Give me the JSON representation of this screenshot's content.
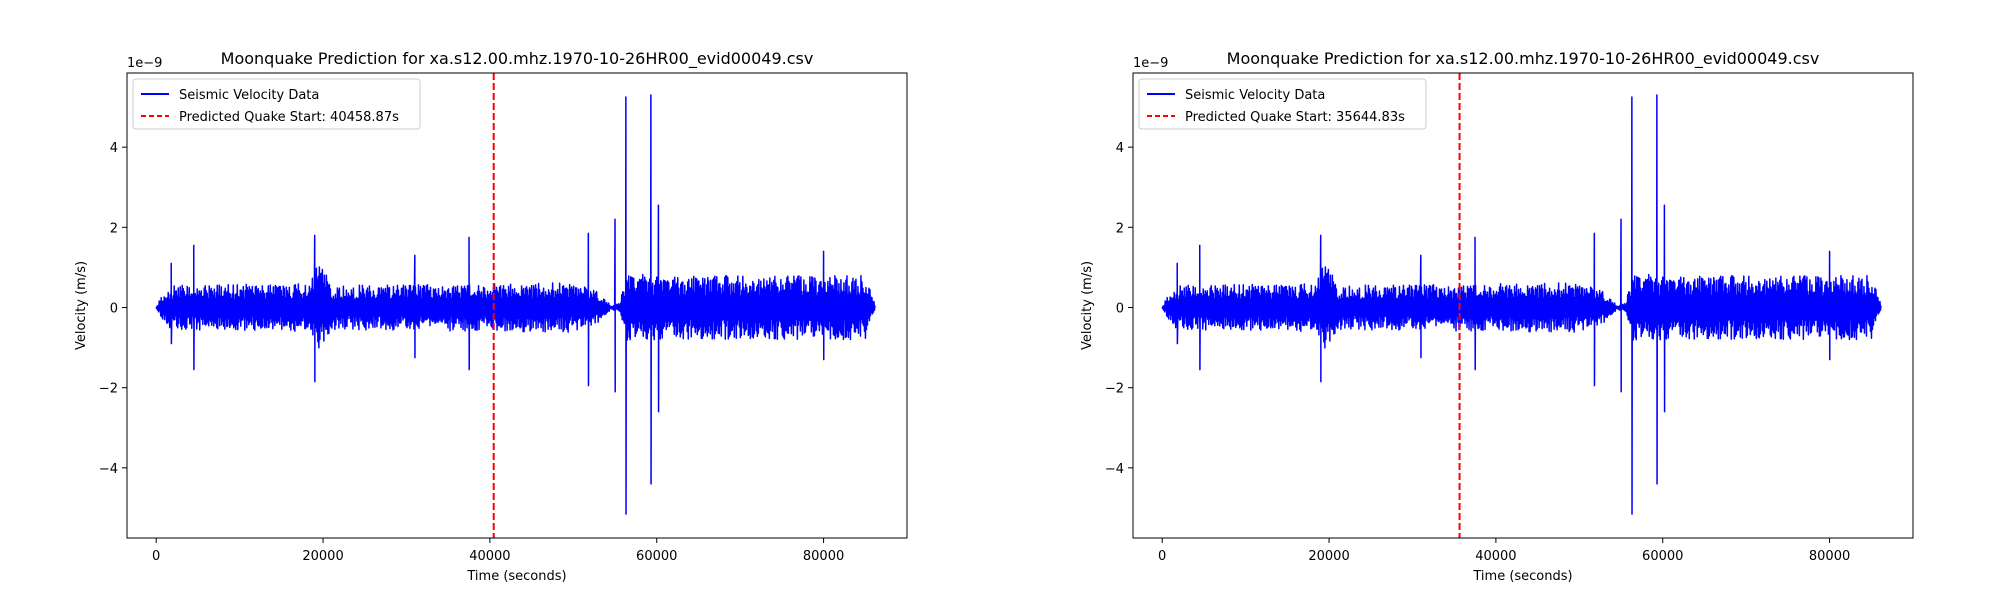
{
  "chart_data": [
    {
      "type": "line",
      "title": "Moonquake Prediction for xa.s12.00.mhz.1970-10-26HR00_evid00049.csv",
      "xlabel": "Time (seconds)",
      "ylabel": "Velocity (m/s)",
      "y_scale_label": "1e−9",
      "xlim": [
        -3500,
        90000
      ],
      "ylim": [
        -5.75e-09,
        5.85e-09
      ],
      "x_ticks": [
        0,
        20000,
        40000,
        60000,
        80000
      ],
      "x_tick_labels": [
        "0",
        "20000",
        "40000",
        "60000",
        "80000"
      ],
      "y_ticks": [
        -4e-09,
        -2e-09,
        0,
        2e-09,
        4e-09
      ],
      "y_tick_labels": [
        "−4",
        "−2",
        "0",
        "2",
        "4"
      ],
      "grid": false,
      "legend_position": "upper-left",
      "series": [
        {
          "name": "Seismic Velocity Data",
          "color": "#0000ff",
          "style": "solid",
          "background_amplitude": [
            [
              0,
              5e-11
            ],
            [
              1500,
              5.5e-10
            ],
            [
              18500,
              6e-10
            ],
            [
              19500,
              1.2e-09
            ],
            [
              21000,
              5.5e-10
            ],
            [
              50000,
              6.2e-10
            ],
            [
              53000,
              4e-10
            ],
            [
              54500,
              5e-11
            ],
            [
              55500,
              1e-10
            ],
            [
              56500,
              8.5e-10
            ],
            [
              60000,
              8e-10
            ],
            [
              85000,
              8e-10
            ],
            [
              86200,
              5e-11
            ]
          ],
          "spikes": [
            {
              "x": 1800,
              "pos": 1.1e-09,
              "neg": -9e-10
            },
            {
              "x": 4500,
              "pos": 1.55e-09,
              "neg": -1.55e-09
            },
            {
              "x": 19000,
              "pos": 1.8e-09,
              "neg": -1.85e-09
            },
            {
              "x": 31000,
              "pos": 1.3e-09,
              "neg": -1.25e-09
            },
            {
              "x": 37500,
              "pos": 1.75e-09,
              "neg": -1.55e-09
            },
            {
              "x": 51800,
              "pos": 1.85e-09,
              "neg": -1.95e-09
            },
            {
              "x": 55000,
              "pos": 2.2e-09,
              "neg": -2.1e-09
            },
            {
              "x": 56300,
              "pos": 5.25e-09,
              "neg": -5.15e-09
            },
            {
              "x": 59300,
              "pos": 5.3e-09,
              "neg": -4.4e-09
            },
            {
              "x": 60200,
              "pos": 2.55e-09,
              "neg": -2.6e-09
            },
            {
              "x": 80000,
              "pos": 1.4e-09,
              "neg": -1.3e-09
            }
          ]
        },
        {
          "name": "Predicted Quake Start: 40458.87s",
          "color": "#ff0000",
          "style": "dashed",
          "x": 40458.87
        }
      ]
    },
    {
      "type": "line",
      "title": "Moonquake Prediction for xa.s12.00.mhz.1970-10-26HR00_evid00049.csv",
      "xlabel": "Time (seconds)",
      "ylabel": "Velocity (m/s)",
      "y_scale_label": "1e−9",
      "xlim": [
        -3500,
        90000
      ],
      "ylim": [
        -5.75e-09,
        5.85e-09
      ],
      "x_ticks": [
        0,
        20000,
        40000,
        60000,
        80000
      ],
      "x_tick_labels": [
        "0",
        "20000",
        "40000",
        "60000",
        "80000"
      ],
      "y_ticks": [
        -4e-09,
        -2e-09,
        0,
        2e-09,
        4e-09
      ],
      "y_tick_labels": [
        "−4",
        "−2",
        "0",
        "2",
        "4"
      ],
      "grid": false,
      "legend_position": "upper-left",
      "series": [
        {
          "name": "Seismic Velocity Data",
          "color": "#0000ff",
          "style": "solid",
          "background_amplitude": [
            [
              0,
              5e-11
            ],
            [
              1500,
              5.5e-10
            ],
            [
              18500,
              6e-10
            ],
            [
              19500,
              1.2e-09
            ],
            [
              21000,
              5.5e-10
            ],
            [
              50000,
              6.2e-10
            ],
            [
              53000,
              4e-10
            ],
            [
              54500,
              5e-11
            ],
            [
              55500,
              1e-10
            ],
            [
              56500,
              8.5e-10
            ],
            [
              60000,
              8e-10
            ],
            [
              85000,
              8e-10
            ],
            [
              86200,
              5e-11
            ]
          ],
          "spikes": [
            {
              "x": 1800,
              "pos": 1.1e-09,
              "neg": -9e-10
            },
            {
              "x": 4500,
              "pos": 1.55e-09,
              "neg": -1.55e-09
            },
            {
              "x": 19000,
              "pos": 1.8e-09,
              "neg": -1.85e-09
            },
            {
              "x": 31000,
              "pos": 1.3e-09,
              "neg": -1.25e-09
            },
            {
              "x": 37500,
              "pos": 1.75e-09,
              "neg": -1.55e-09
            },
            {
              "x": 51800,
              "pos": 1.85e-09,
              "neg": -1.95e-09
            },
            {
              "x": 55000,
              "pos": 2.2e-09,
              "neg": -2.1e-09
            },
            {
              "x": 56300,
              "pos": 5.25e-09,
              "neg": -5.15e-09
            },
            {
              "x": 59300,
              "pos": 5.3e-09,
              "neg": -4.4e-09
            },
            {
              "x": 60200,
              "pos": 2.55e-09,
              "neg": -2.6e-09
            },
            {
              "x": 80000,
              "pos": 1.4e-09,
              "neg": -1.3e-09
            }
          ]
        },
        {
          "name": "Predicted Quake Start: 35644.83s",
          "color": "#ff0000",
          "style": "dashed",
          "x": 35644.83
        }
      ]
    }
  ]
}
